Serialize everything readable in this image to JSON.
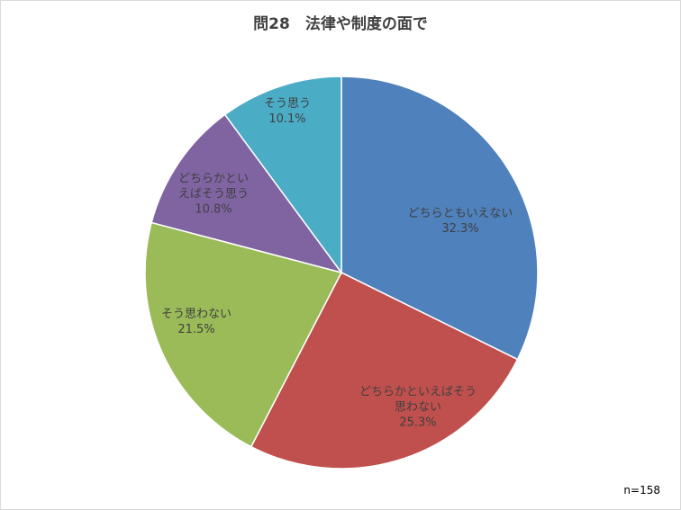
{
  "chart_data": {
    "type": "pie",
    "title": "問28　法律や制度の面で",
    "note": "n=158",
    "legend": "none",
    "slices": [
      {
        "label": [
          "どちらともいえない"
        ],
        "value": 32.3,
        "value_text": "32.3%",
        "color": "#4f81bd"
      },
      {
        "label": [
          "どちらかといえばそう",
          "思わない"
        ],
        "value": 25.3,
        "value_text": "25.3%",
        "color": "#c0504d"
      },
      {
        "label": [
          "そう思わない"
        ],
        "value": 21.5,
        "value_text": "21.5%",
        "color": "#9bbb59"
      },
      {
        "label": [
          "どちらかとい",
          "えばそう思う"
        ],
        "value": 10.8,
        "value_text": "10.8%",
        "color": "#8064a2"
      },
      {
        "label": [
          "そう思う"
        ],
        "value": 10.1,
        "value_text": "10.1%",
        "color": "#4bacc6"
      }
    ]
  }
}
